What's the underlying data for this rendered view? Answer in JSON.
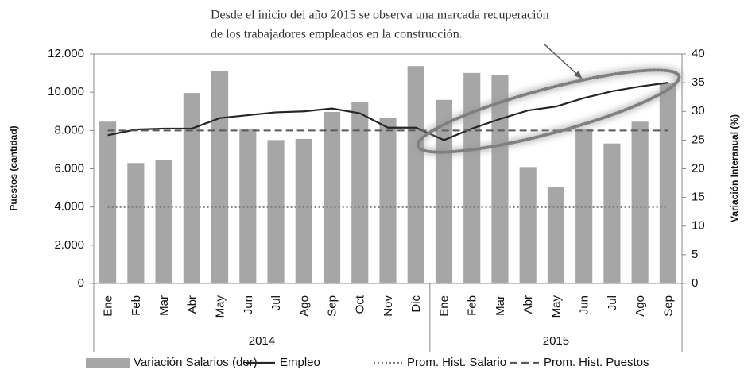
{
  "chart_data": {
    "type": "bar-line",
    "annotation": [
      "Desde el inicio del año 2015 se observa una marcada recuperación",
      "de los trabajadores empleados en la construcción."
    ],
    "ylabel": "Puestos (cantidad)",
    "y2label": "Variación Interanual (%)",
    "year_groups": [
      {
        "label": "2014",
        "months": [
          "Ene",
          "Feb",
          "Mar",
          "Abr",
          "May",
          "Jun",
          "Jul",
          "Ago",
          "Sep",
          "Oct",
          "Nov",
          "Dic"
        ]
      },
      {
        "label": "2015",
        "months": [
          "Ene",
          "Feb",
          "Mar",
          "Abr",
          "May",
          "Jun",
          "Jul",
          "Ago",
          "Sep"
        ]
      }
    ],
    "ylim": [
      0,
      12000
    ],
    "yticks": [
      0,
      {
        "value": 2000,
        "label": "2.000"
      },
      {
        "value": 4000,
        "label": "4.000"
      },
      {
        "value": 6000,
        "label": "6.000"
      },
      {
        "value": 8000,
        "label": "8.000"
      },
      {
        "value": 10000,
        "label": "10.000"
      },
      {
        "value": 12000,
        "label": "12.000"
      }
    ],
    "y2lim": [
      0,
      40
    ],
    "y2ticks": [
      0,
      5,
      10,
      15,
      20,
      25,
      30,
      35,
      40
    ],
    "series": [
      {
        "name": "Variación Salarios (der)",
        "kind": "bar",
        "axis": "y2",
        "color": "#a6a6a6",
        "values": [
          28.2,
          21.0,
          21.5,
          33.2,
          37.1,
          27.0,
          25.0,
          25.2,
          29.9,
          31.6,
          28.8,
          37.9,
          32.0,
          36.7,
          36.4,
          20.3,
          16.8,
          27.0,
          24.4,
          28.2,
          35.0
        ]
      },
      {
        "name": "Empleo",
        "kind": "line",
        "color": "#262626",
        "dash": "solid",
        "values": [
          7750,
          8050,
          8100,
          8100,
          8650,
          8800,
          8950,
          9000,
          9150,
          8900,
          8150,
          8150,
          7500,
          8100,
          8600,
          9050,
          9250,
          9700,
          10050,
          10300,
          10500
        ]
      },
      {
        "name": "Prom. Hist. Salario",
        "kind": "line",
        "axis": "y2",
        "color": "#7f7f7f",
        "dash": "dotted",
        "values": [
          13.3,
          13.3,
          13.3,
          13.3,
          13.3,
          13.3,
          13.3,
          13.3,
          13.3,
          13.3,
          13.3,
          13.3,
          13.3,
          13.3,
          13.3,
          13.3,
          13.3,
          13.3,
          13.3,
          13.3,
          13.3
        ]
      },
      {
        "name": "Prom. Hist. Puestos",
        "kind": "line",
        "color": "#595959",
        "dash": "dashed",
        "values": [
          8000,
          8000,
          8000,
          8000,
          8000,
          8000,
          8000,
          8000,
          8000,
          8000,
          8000,
          8000,
          8000,
          8000,
          8000,
          8000,
          8000,
          8000,
          8000,
          8000,
          8000
        ]
      }
    ]
  }
}
